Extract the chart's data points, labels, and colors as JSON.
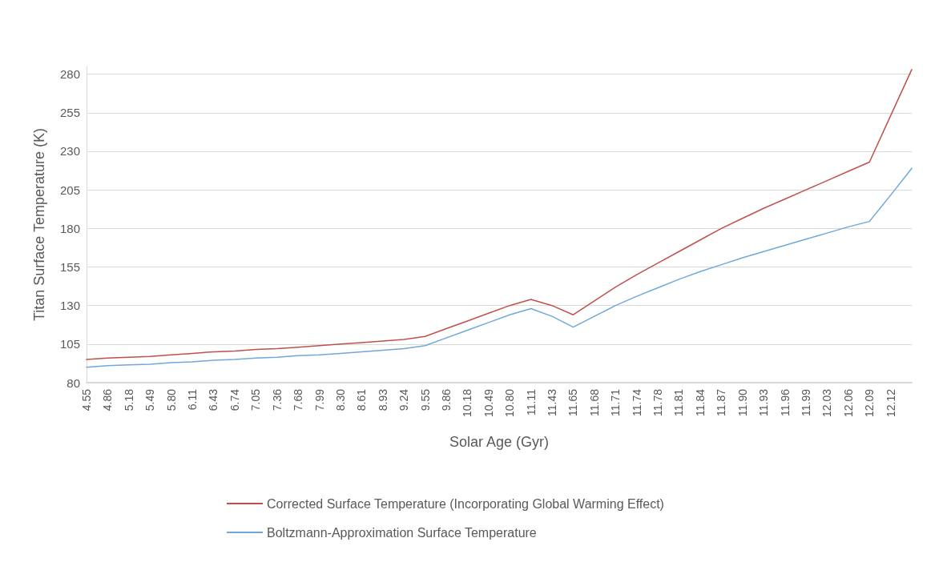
{
  "chart_data": {
    "type": "line",
    "xlabel": "Solar Age (Gyr)",
    "ylabel": "Titan Surface Temperature (K)",
    "categories": [
      "4.55",
      "4.86",
      "5.18",
      "5.49",
      "5.80",
      "6.11",
      "6.43",
      "6.74",
      "7.05",
      "7.36",
      "7.68",
      "7.99",
      "8.30",
      "8.61",
      "8.93",
      "9.24",
      "9.55",
      "9.86",
      "10.18",
      "10.49",
      "10.80",
      "11.11",
      "11.43",
      "11.65",
      "11.68",
      "11.71",
      "11.74",
      "11.78",
      "11.81",
      "11.84",
      "11.87",
      "11.90",
      "11.93",
      "11.96",
      "11.99",
      "12.03",
      "12.06",
      "12.09",
      "12.12",
      null
    ],
    "series": [
      {
        "name": "Corrected Surface Temperature (Incorporating Global Warming Effect)",
        "color": "#c0504d",
        "values": [
          95,
          96,
          96.5,
          97,
          98,
          99,
          100,
          100.5,
          101.5,
          102,
          103,
          104,
          105,
          106,
          107,
          108,
          110,
          115,
          120,
          125,
          130,
          134,
          130,
          124,
          133,
          142,
          150,
          157.5,
          165,
          172.5,
          180,
          186.5,
          193,
          199,
          205,
          211,
          217,
          223,
          253,
          283
        ]
      },
      {
        "name": "Boltzmann-Approximation Surface Temperature",
        "color": "#6fa8dc",
        "values": [
          90,
          91,
          91.5,
          92,
          93,
          93.5,
          94.5,
          95,
          96,
          96.5,
          97.5,
          98,
          99,
          100,
          101,
          102,
          104,
          109,
          114,
          119,
          124,
          128,
          123,
          116,
          123,
          130,
          136,
          141.5,
          147,
          152,
          156.5,
          161,
          165,
          169,
          173,
          177,
          181,
          184.5,
          201.5,
          219
        ]
      }
    ],
    "ylim": [
      80,
      285
    ],
    "yticks": [
      80,
      105,
      130,
      155,
      180,
      205,
      230,
      255,
      280
    ],
    "grid": "y",
    "legend": "bottom",
    "marker": "none",
    "line_style": "solid"
  }
}
